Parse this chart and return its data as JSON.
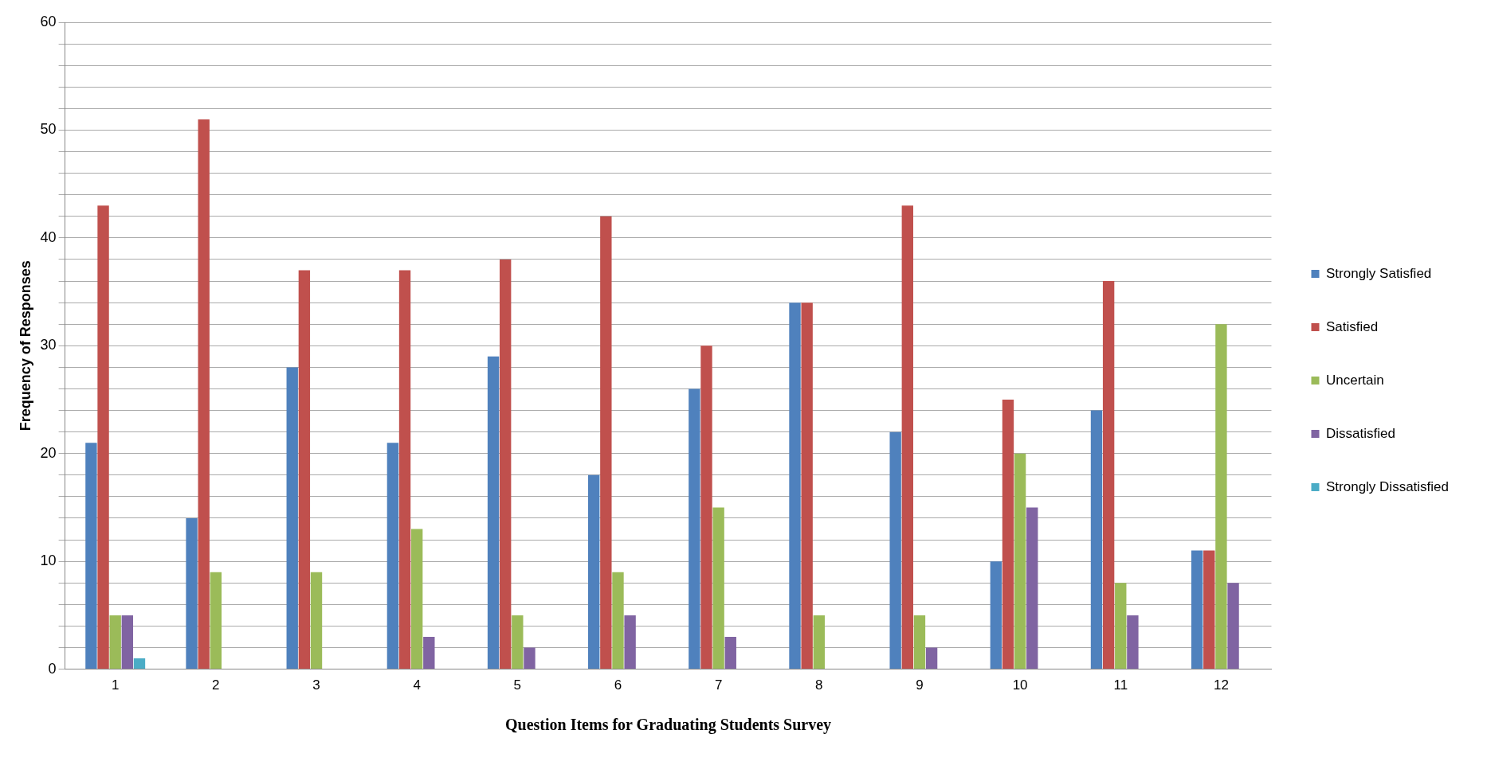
{
  "chart_data": {
    "type": "bar",
    "xlabel": "Question Items for Graduating Students Survey",
    "ylabel": "Frequency of Responses",
    "categories": [
      "1",
      "2",
      "3",
      "4",
      "5",
      "6",
      "7",
      "8",
      "9",
      "10",
      "11",
      "12"
    ],
    "series": [
      {
        "name": "Strongly Satisfied",
        "color": "#4f81bd",
        "values": [
          21,
          14,
          28,
          21,
          29,
          18,
          26,
          34,
          22,
          10,
          24,
          11
        ]
      },
      {
        "name": "Satisfied",
        "color": "#c0504d",
        "values": [
          43,
          51,
          37,
          37,
          38,
          42,
          30,
          34,
          43,
          25,
          36,
          11
        ]
      },
      {
        "name": "Uncertain",
        "color": "#9bbb59",
        "values": [
          5,
          9,
          9,
          13,
          5,
          9,
          15,
          5,
          5,
          20,
          8,
          32
        ]
      },
      {
        "name": "Dissatisfied",
        "color": "#8064a2",
        "values": [
          5,
          0,
          0,
          3,
          2,
          5,
          3,
          0,
          2,
          15,
          5,
          8
        ]
      },
      {
        "name": "Strongly Dissatisfied",
        "color": "#4bacc6",
        "values": [
          1,
          0,
          0,
          0,
          0,
          0,
          0,
          0,
          0,
          0,
          0,
          0
        ]
      }
    ],
    "ylim": [
      0,
      60
    ],
    "yticks": [
      0,
      {
        "value": 2,
        "label": null
      },
      {
        "value": 4,
        "label": null
      },
      {
        "value": 6,
        "label": null
      },
      {
        "value": 8,
        "label": null
      },
      10,
      {
        "value": 12,
        "label": null
      },
      {
        "value": 14,
        "label": null
      },
      {
        "value": 16,
        "label": null
      },
      {
        "value": 18,
        "label": null
      },
      20,
      {
        "value": 22,
        "label": null
      },
      {
        "value": 24,
        "label": null
      },
      {
        "value": 26,
        "label": null
      },
      {
        "value": 28,
        "label": null
      },
      30,
      {
        "value": 32,
        "label": null
      },
      {
        "value": 34,
        "label": null
      },
      {
        "value": 36,
        "label": null
      },
      {
        "value": 38,
        "label": null
      },
      40,
      {
        "value": 42,
        "label": null
      },
      {
        "value": 44,
        "label": null
      },
      {
        "value": 46,
        "label": null
      },
      {
        "value": 48,
        "label": null
      },
      50,
      {
        "value": 52,
        "label": null
      },
      {
        "value": 54,
        "label": null
      },
      {
        "value": 56,
        "label": null
      },
      {
        "value": 58,
        "label": null
      },
      60
    ],
    "grid": "y",
    "legend": "right"
  }
}
